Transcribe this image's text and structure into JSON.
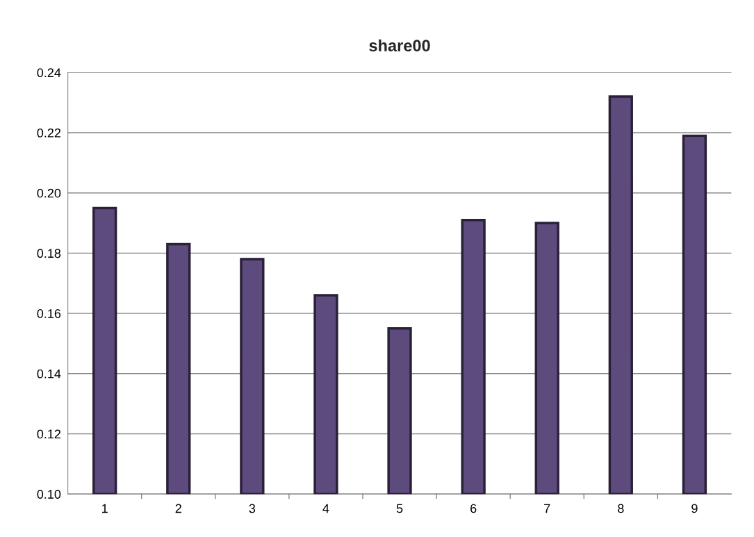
{
  "chart_data": {
    "type": "bar",
    "title": "share00",
    "categories": [
      "1",
      "2",
      "3",
      "4",
      "5",
      "6",
      "7",
      "8",
      "9"
    ],
    "values": [
      0.195,
      0.183,
      0.178,
      0.166,
      0.155,
      0.191,
      0.19,
      0.232,
      0.219
    ],
    "color": "#5e4b7e",
    "ylim": [
      0.1,
      0.24
    ],
    "yticks": [
      {
        "value": 0.1,
        "label": "0.10"
      },
      {
        "value": 0.12,
        "label": "0.12"
      },
      {
        "value": 0.14,
        "label": "0.14"
      },
      {
        "value": 0.16,
        "label": "0.16"
      },
      {
        "value": 0.18,
        "label": "0.18"
      },
      {
        "value": 0.2,
        "label": "0.20"
      },
      {
        "value": 0.22,
        "label": "0.22"
      },
      {
        "value": 0.24,
        "label": "0.24"
      }
    ],
    "grid": "y",
    "legend": false
  }
}
